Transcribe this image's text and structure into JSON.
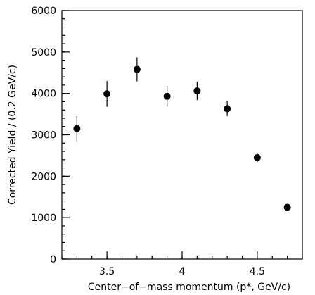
{
  "chart_data": {
    "type": "scatter",
    "title": "",
    "xlabel": "Center−of−mass momentum (p*, GeV/c)",
    "ylabel": "Corrected Yield / (0.2 GeV/c)",
    "xlim": [
      3.2,
      4.8
    ],
    "ylim": [
      0,
      6000
    ],
    "x_ticks": [
      {
        "value": 3.5,
        "label": "3.5"
      },
      {
        "value": 4.0,
        "label": "4"
      },
      {
        "value": 4.5,
        "label": "4.5"
      }
    ],
    "y_ticks": [
      {
        "value": 0,
        "label": "0"
      },
      {
        "value": 1000,
        "label": "1000"
      },
      {
        "value": 2000,
        "label": "2000"
      },
      {
        "value": 3000,
        "label": "3000"
      },
      {
        "value": 4000,
        "label": "4000"
      },
      {
        "value": 5000,
        "label": "5000"
      },
      {
        "value": 6000,
        "label": "6000"
      }
    ],
    "x_minor_step": 0.1,
    "y_minor_step": 200,
    "grid": false,
    "points": [
      {
        "x": 3.3,
        "y": 3150,
        "err": 300
      },
      {
        "x": 3.5,
        "y": 3990,
        "err": 310
      },
      {
        "x": 3.7,
        "y": 4580,
        "err": 290
      },
      {
        "x": 3.9,
        "y": 3930,
        "err": 250
      },
      {
        "x": 4.1,
        "y": 4060,
        "err": 220
      },
      {
        "x": 4.3,
        "y": 3630,
        "err": 180
      },
      {
        "x": 4.5,
        "y": 2450,
        "err": 110
      },
      {
        "x": 4.7,
        "y": 1250,
        "err": 60
      }
    ]
  }
}
